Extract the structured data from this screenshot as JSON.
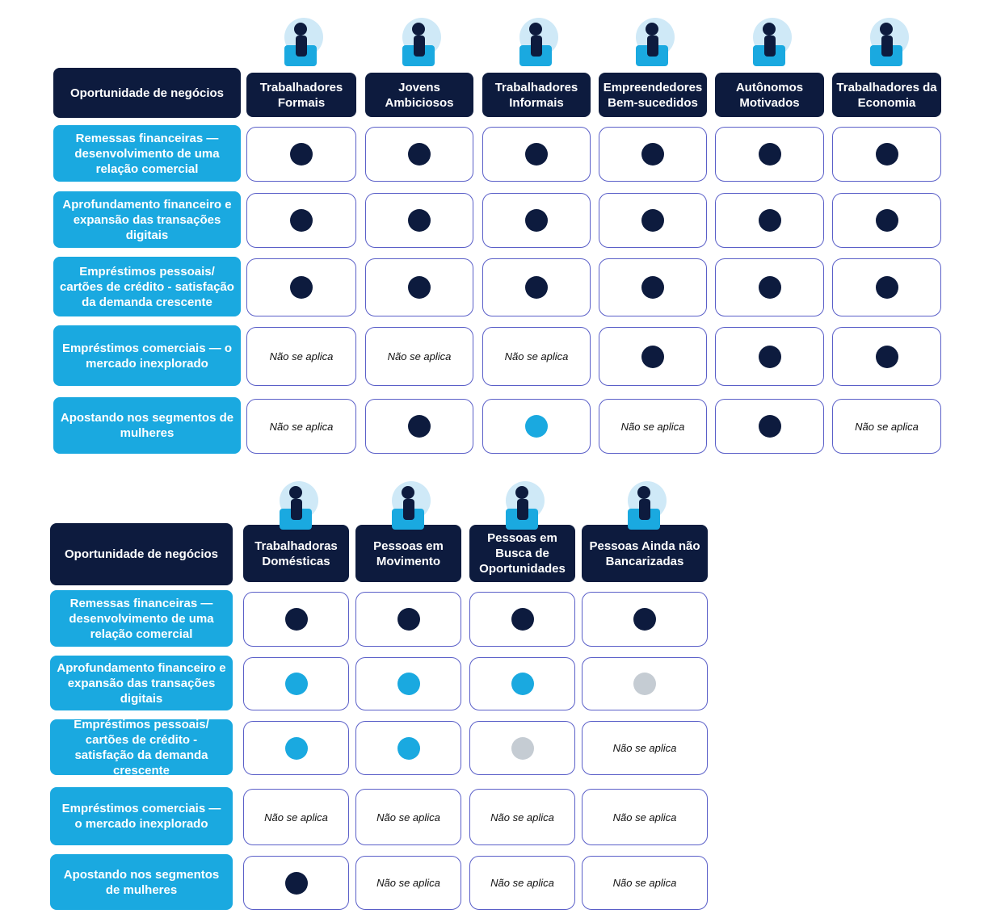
{
  "tables": [
    {
      "corner": "Oportunidade de negócios",
      "columns": [
        "Trabalhadores Formais",
        "Jovens Ambiciosos",
        "Trabalhadores Informais",
        "Empreendedores Bem-sucedidos",
        "Autônomos Motivados",
        "Trabalhadores da Economia"
      ],
      "rows": [
        {
          "label": "Remessas financeiras — desenvolvimento de uma relação comercial",
          "cells": [
            {
              "color": "#0d1b3e"
            },
            {
              "color": "#0d1b3e"
            },
            {
              "color": "#0d1b3e"
            },
            {
              "color": "#0d1b3e"
            },
            {
              "color": "#0d1b3e"
            },
            {
              "color": "#0d1b3e"
            }
          ]
        },
        {
          "label": "Aprofundamento financeiro e expansão das transações digitais",
          "cells": [
            {
              "color": "#0d1b3e"
            },
            {
              "color": "#0d1b3e"
            },
            {
              "color": "#0d1b3e"
            },
            {
              "color": "#0d1b3e"
            },
            {
              "color": "#0d1b3e"
            },
            {
              "color": "#0d1b3e"
            }
          ]
        },
        {
          "label": "Empréstimos pessoais/ cartões de crédito - satisfação da demanda crescente",
          "cells": [
            {
              "color": "#0d1b3e"
            },
            {
              "color": "#0d1b3e"
            },
            {
              "color": "#0d1b3e"
            },
            {
              "color": "#0d1b3e"
            },
            {
              "color": "#0d1b3e"
            },
            {
              "color": "#0d1b3e"
            }
          ]
        },
        {
          "label": "Empréstimos comerciais — o mercado inexplorado",
          "cells": [
            {
              "text": "Não se aplica"
            },
            {
              "text": "Não se aplica"
            },
            {
              "text": "Não se aplica"
            },
            {
              "color": "#0d1b3e"
            },
            {
              "color": "#0d1b3e"
            },
            {
              "color": "#0d1b3e"
            }
          ]
        },
        {
          "label": "Apostando nos segmentos de mulheres",
          "cells": [
            {
              "text": "Não se aplica"
            },
            {
              "color": "#0d1b3e"
            },
            {
              "color": "#1aa9e0"
            },
            {
              "text": "Não se aplica"
            },
            {
              "color": "#0d1b3e"
            },
            {
              "text": "Não se aplica"
            }
          ]
        }
      ]
    },
    {
      "corner": "Oportunidade de negócios",
      "columns": [
        "Trabalhadoras Domésticas",
        "Pessoas em Movimento",
        "Pessoas em Busca de Oportunidades",
        "Pessoas Ainda não Bancarizadas"
      ],
      "rows": [
        {
          "label": "Remessas financeiras — desenvolvimento de uma relação comercial",
          "cells": [
            {
              "color": "#0d1b3e"
            },
            {
              "color": "#0d1b3e"
            },
            {
              "color": "#0d1b3e"
            },
            {
              "color": "#0d1b3e"
            }
          ]
        },
        {
          "label": "Aprofundamento financeiro e expansão das transações digitais",
          "cells": [
            {
              "color": "#1aa9e0"
            },
            {
              "color": "#1aa9e0"
            },
            {
              "color": "#1aa9e0"
            },
            {
              "color": "#c5ccd3"
            }
          ]
        },
        {
          "label": "Empréstimos pessoais/ cartões de crédito - satisfação da demanda crescente",
          "cells": [
            {
              "color": "#1aa9e0"
            },
            {
              "color": "#1aa9e0"
            },
            {
              "color": "#c5ccd3"
            },
            {
              "text": "Não se aplica"
            }
          ]
        },
        {
          "label": "Empréstimos comerciais — o mercado inexplorado",
          "cells": [
            {
              "text": "Não se aplica"
            },
            {
              "text": "Não se aplica"
            },
            {
              "text": "Não se aplica"
            },
            {
              "text": "Não se aplica"
            }
          ]
        },
        {
          "label": "Apostando nos segmentos de mulheres",
          "cells": [
            {
              "color": "#0d1b3e"
            },
            {
              "text": "Não se aplica"
            },
            {
              "text": "Não se aplica"
            },
            {
              "text": "Não se aplica"
            }
          ]
        }
      ]
    }
  ]
}
